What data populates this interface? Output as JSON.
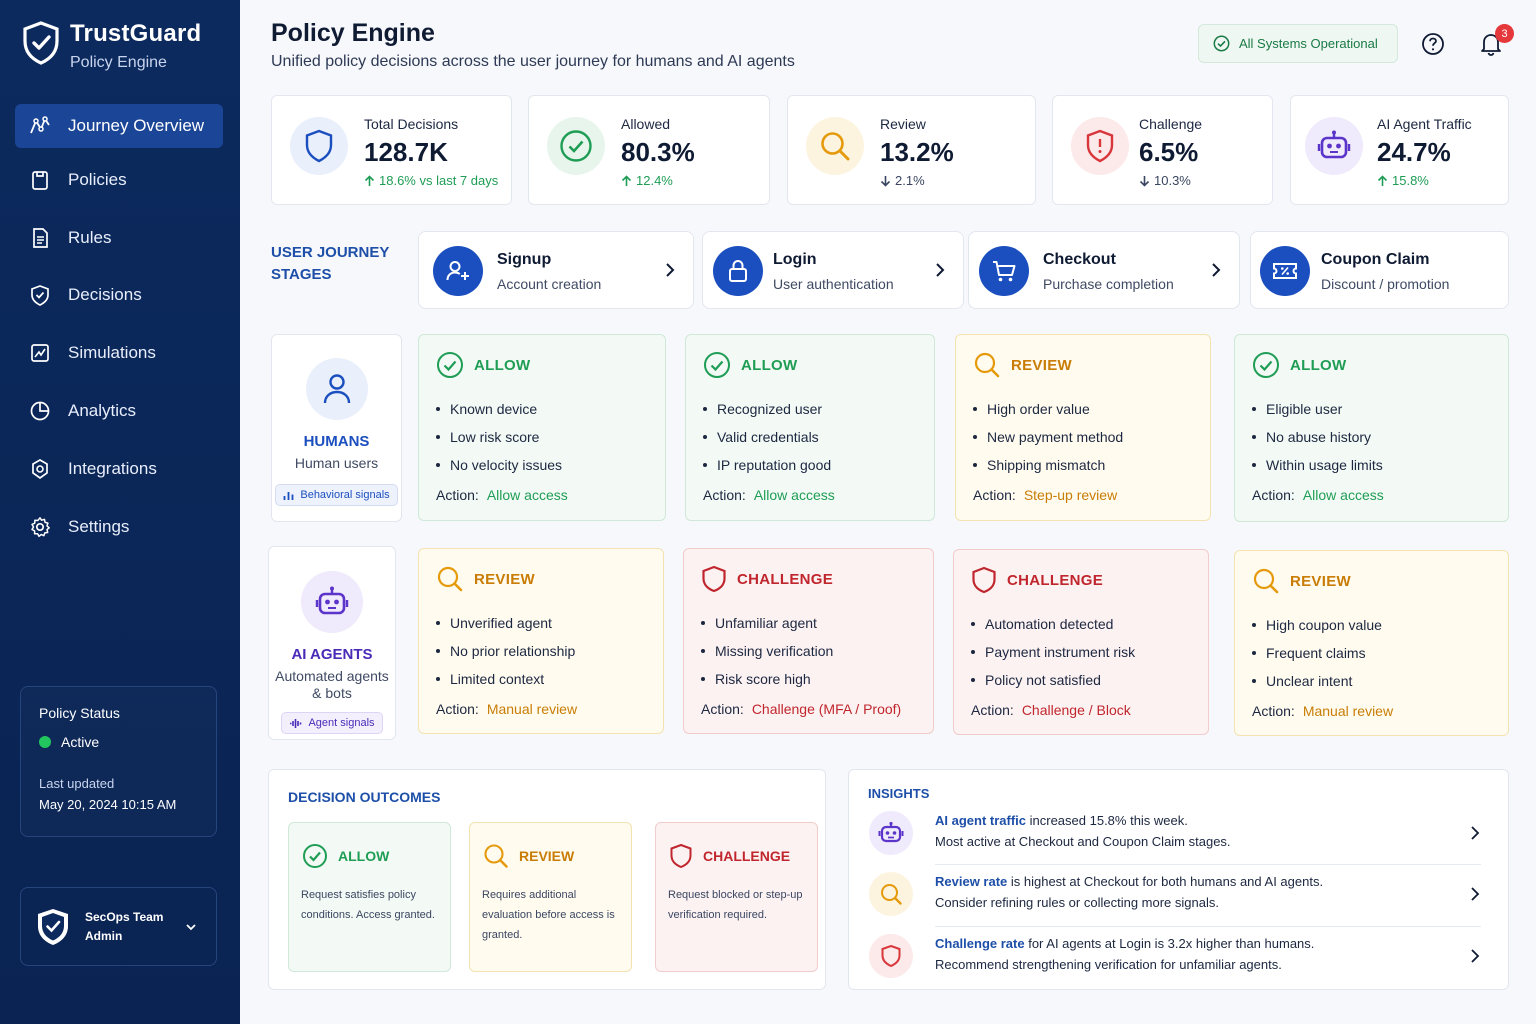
{
  "brand": {
    "title": "TrustGuard",
    "subtitle": "Policy Engine"
  },
  "nav": [
    {
      "label": "Journey Overview",
      "icon": "journey-icon",
      "active": true
    },
    {
      "label": "Policies",
      "icon": "policies-icon"
    },
    {
      "label": "Rules",
      "icon": "rules-icon"
    },
    {
      "label": "Decisions",
      "icon": "decisions-icon"
    },
    {
      "label": "Simulations",
      "icon": "simulations-icon"
    },
    {
      "label": "Analytics",
      "icon": "analytics-icon"
    },
    {
      "label": "Integrations",
      "icon": "integrations-icon"
    },
    {
      "label": "Settings",
      "icon": "settings-icon"
    }
  ],
  "policy_status": {
    "label": "Policy Status",
    "state": "Active",
    "updated_label": "Last updated",
    "updated": "May 20, 2024 10:15 AM"
  },
  "user": {
    "team": "SecOps Team",
    "role": "Admin"
  },
  "header": {
    "title": "Policy Engine",
    "subtitle": "Unified policy decisions across the user journey for humans and AI agents",
    "system_status": "All Systems Operational",
    "notifications": "3"
  },
  "stats": [
    {
      "label": "Total Decisions",
      "value": "128.7K",
      "change": "18.6% vs last 7 days",
      "dir": "up"
    },
    {
      "label": "Allowed",
      "value": "80.3%",
      "change": "12.4%",
      "dir": "up"
    },
    {
      "label": "Review",
      "value": "13.2%",
      "change": "2.1%",
      "dir": "down"
    },
    {
      "label": "Challenge",
      "value": "6.5%",
      "change": "10.3%",
      "dir": "down"
    },
    {
      "label": "AI Agent Traffic",
      "value": "24.7%",
      "change": "15.8%",
      "dir": "up"
    }
  ],
  "stages_label_1": "USER JOURNEY",
  "stages_label_2": "STAGES",
  "stages": [
    {
      "title": "Signup",
      "sub": "Account creation"
    },
    {
      "title": "Login",
      "sub": "User authentication"
    },
    {
      "title": "Checkout",
      "sub": "Purchase completion"
    },
    {
      "title": "Coupon Claim",
      "sub": "Discount / promotion"
    }
  ],
  "actors": {
    "humans": {
      "title": "HUMANS",
      "desc": "Human users",
      "signal": "Behavioral signals"
    },
    "agents": {
      "title": "AI AGENTS",
      "desc1": "Automated agents",
      "desc2": "& bots",
      "signal": "Agent signals"
    }
  },
  "action_label": "Action:",
  "humans_row": [
    {
      "decision": "ALLOW",
      "items": [
        "Known device",
        "Low risk score",
        "No velocity issues"
      ],
      "action": "Allow access"
    },
    {
      "decision": "ALLOW",
      "items": [
        "Recognized user",
        "Valid credentials",
        "IP reputation good"
      ],
      "action": "Allow access"
    },
    {
      "decision": "REVIEW",
      "items": [
        "High order value",
        "New payment method",
        "Shipping mismatch"
      ],
      "action": "Step-up review"
    },
    {
      "decision": "ALLOW",
      "items": [
        "Eligible user",
        "No abuse history",
        "Within usage limits"
      ],
      "action": "Allow access"
    }
  ],
  "agents_row": [
    {
      "decision": "REVIEW",
      "items": [
        "Unverified agent",
        "No prior relationship",
        "Limited context"
      ],
      "action": "Manual review"
    },
    {
      "decision": "CHALLENGE",
      "items": [
        "Unfamiliar agent",
        "Missing verification",
        "Risk score high"
      ],
      "action": "Challenge (MFA / Proof)"
    },
    {
      "decision": "CHALLENGE",
      "items": [
        "Automation detected",
        "Payment instrument risk",
        "Policy not satisfied"
      ],
      "action": "Challenge / Block"
    },
    {
      "decision": "REVIEW",
      "items": [
        "High coupon value",
        "Frequent claims",
        "Unclear intent"
      ],
      "action": "Manual review"
    }
  ],
  "outcomes": {
    "title": "DECISION OUTCOMES",
    "items": [
      {
        "label": "ALLOW",
        "desc": "Request satisfies policy conditions. Access granted."
      },
      {
        "label": "REVIEW",
        "desc": "Requires additional evaluation before access is granted."
      },
      {
        "label": "CHALLENGE",
        "desc": "Request blocked or step-up verification required."
      }
    ]
  },
  "insights": {
    "title": "INSIGHTS",
    "items": [
      {
        "lead": "AI agent traffic",
        "rest": " increased 15.8% this week.",
        "line2": "Most active at Checkout and Coupon Claim stages."
      },
      {
        "lead": "Review rate",
        "rest": " is highest at Checkout for both humans and AI agents.",
        "line2": "Consider refining rules or collecting more signals."
      },
      {
        "lead": "Challenge rate",
        "rest": " for AI agents at Login is 3.2x higher than humans.",
        "line2": "Recommend strengthening verification for unfamiliar agents."
      }
    ]
  },
  "colors": {
    "sidebar": "#0c2a5e",
    "accent": "#1b4fbf",
    "allow": "#1f9d55",
    "review": "#c97d06",
    "challenge": "#c0262d",
    "agent": "#5b35c9"
  }
}
